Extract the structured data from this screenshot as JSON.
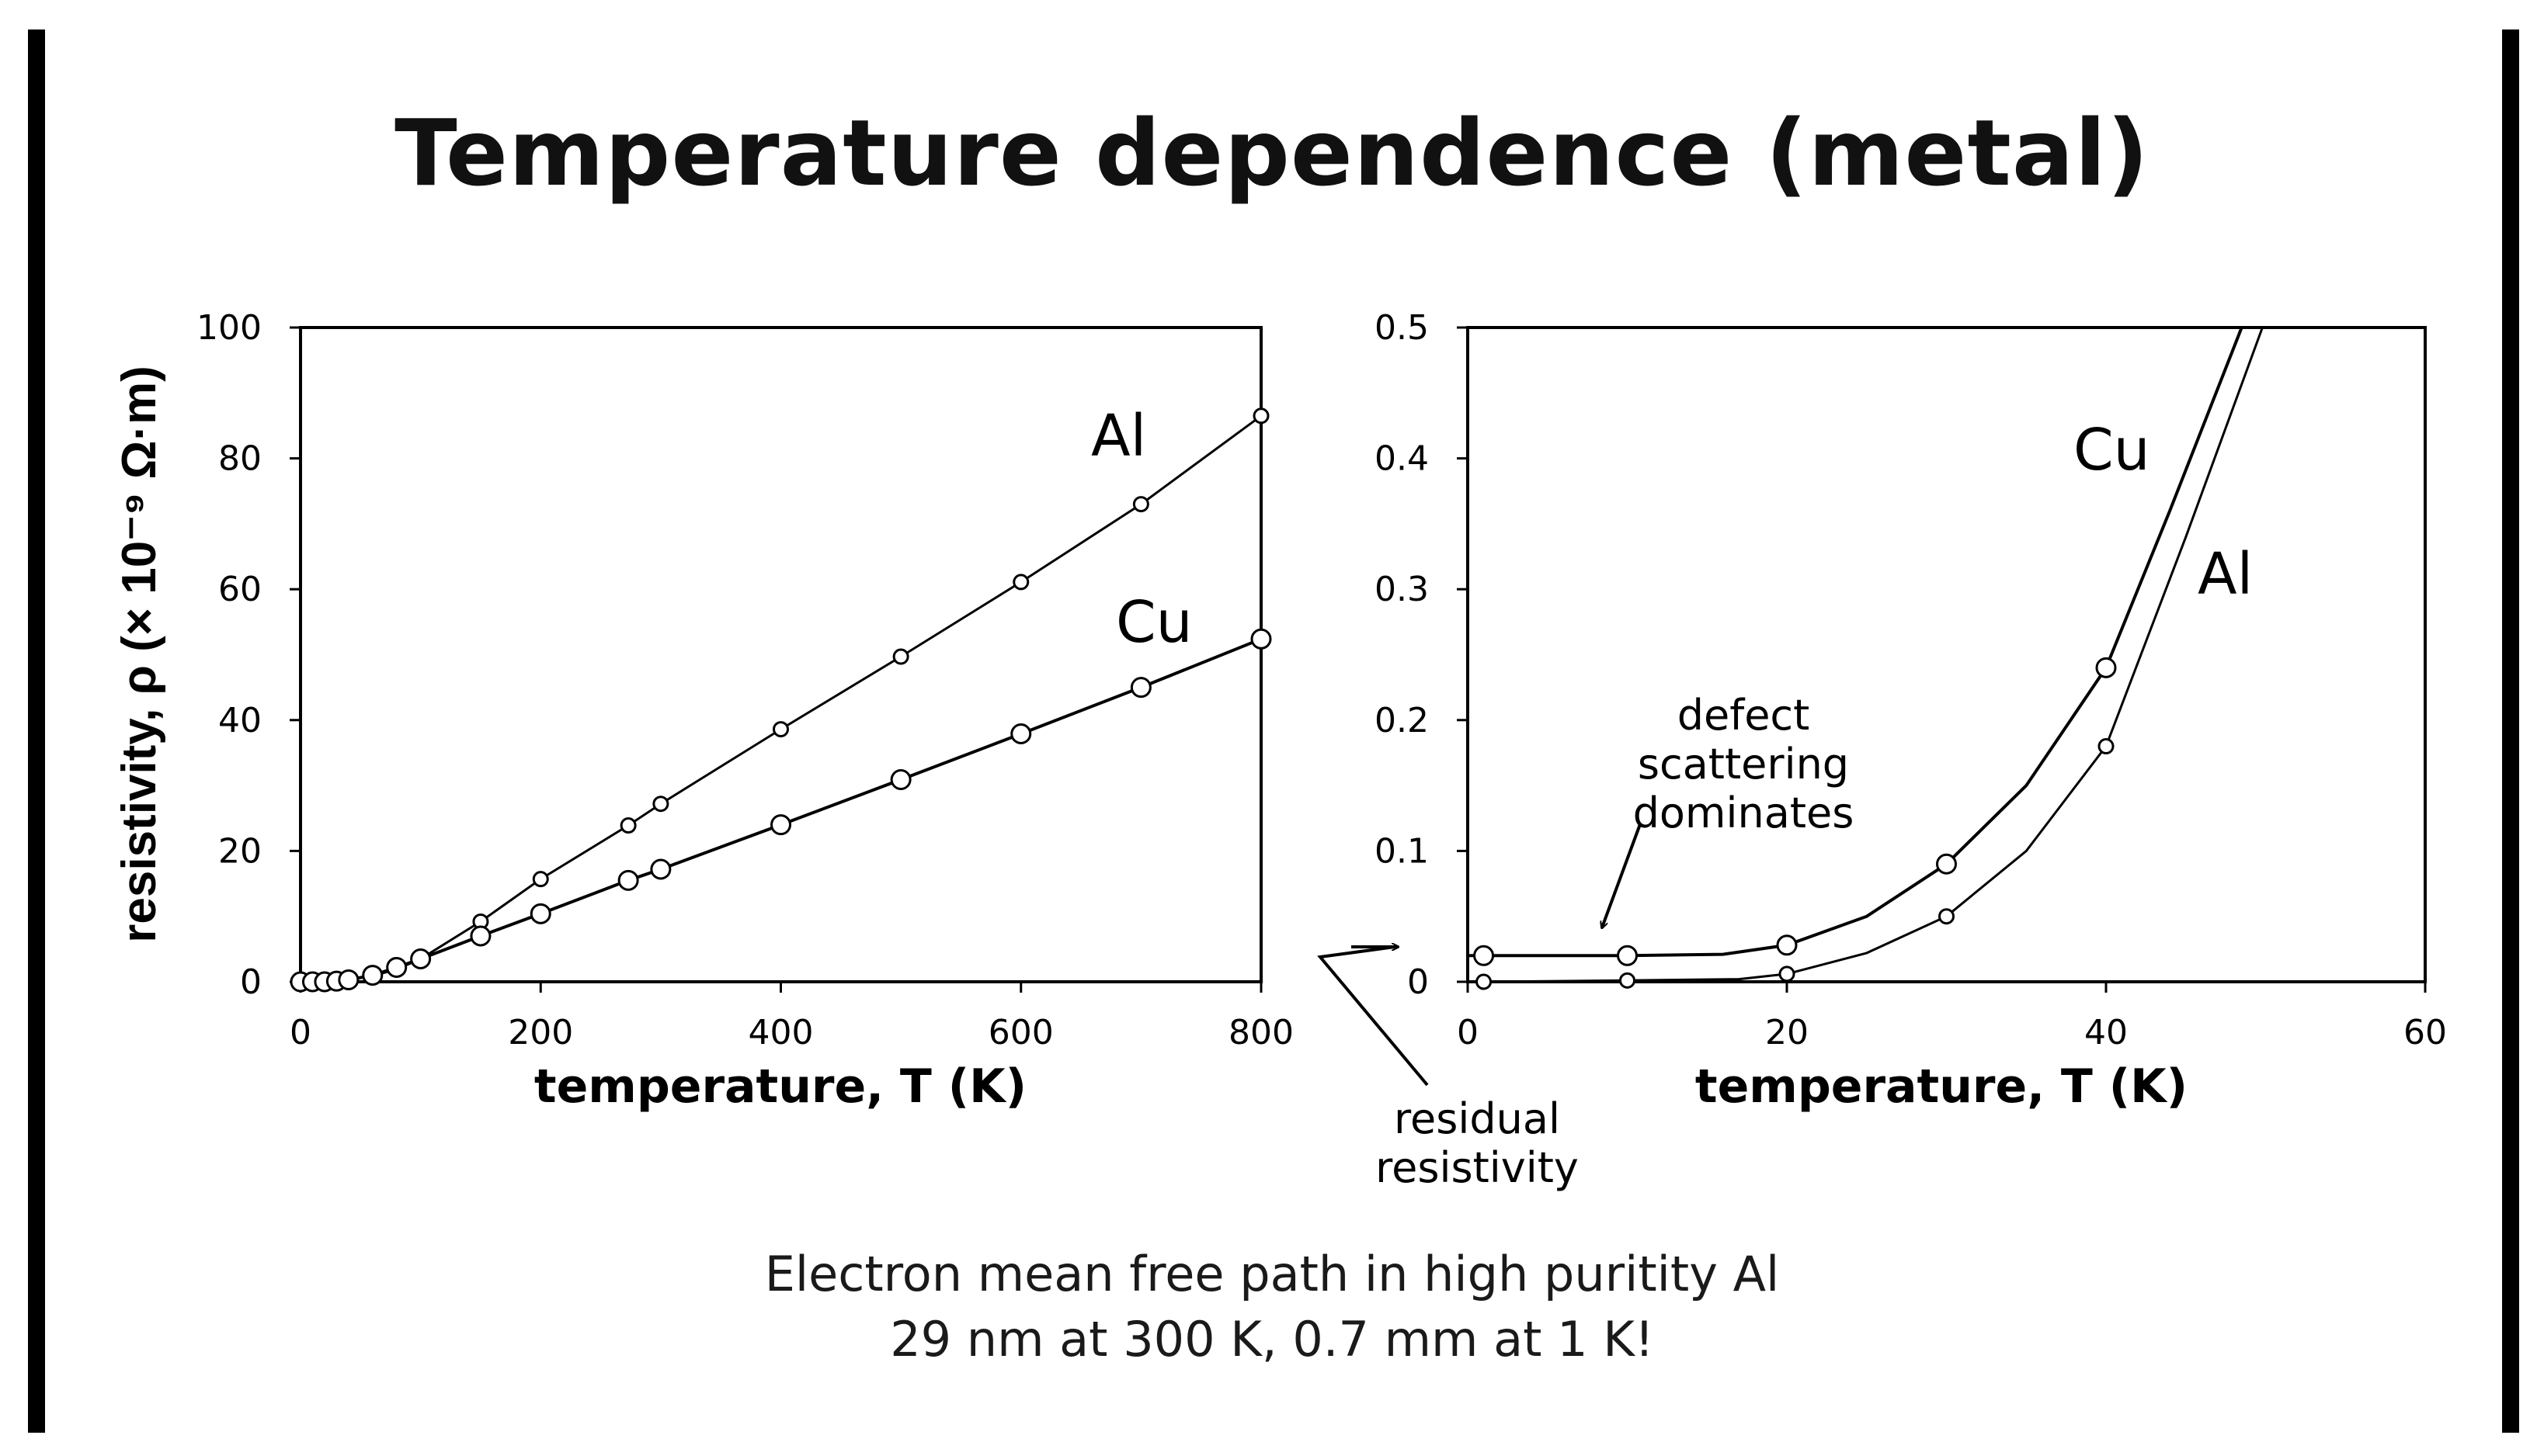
{
  "slide": {
    "title": "Temperature dependence (metal)",
    "caption_line1": "Electron mean free path in high puritity Al",
    "caption_line2": "29 nm at 300 K, 0.7 mm at 1 K!"
  },
  "annotations": {
    "residual_line1": "residual",
    "residual_line2": "resistivity",
    "defect_line1": "defect",
    "defect_line2": "scattering",
    "defect_line3": "dominates"
  },
  "chart_data": [
    {
      "type": "line",
      "xlabel": "temperature, T (K)",
      "ylabel": "resistivity, ρ (× 10⁻⁹ Ω·m)",
      "xlim": [
        0,
        800
      ],
      "ylim": [
        0,
        100
      ],
      "xticks": [
        0,
        200,
        400,
        600,
        800
      ],
      "yticks": [
        0,
        20,
        40,
        60,
        80,
        100
      ],
      "xtick_labels": [
        "0",
        "200",
        "400",
        "600",
        "800"
      ],
      "ytick_labels": [
        "0",
        "20",
        "40",
        "60",
        "80",
        "100"
      ],
      "grid": false,
      "legend": "inline labels",
      "series": [
        {
          "name": "Al",
          "marker": "small-open-circle",
          "x": [
            0,
            10,
            20,
            30,
            40,
            60,
            80,
            100,
            150,
            200,
            273,
            300,
            400,
            500,
            600,
            700,
            800
          ],
          "y": [
            0.0,
            0.0,
            0.0,
            0.1,
            0.3,
            0.9,
            1.9,
            3.5,
            9.2,
            15.7,
            23.9,
            27.2,
            38.6,
            49.7,
            61.1,
            73.0,
            86.5
          ]
        },
        {
          "name": "Cu",
          "marker": "open-circle",
          "x": [
            0,
            10,
            20,
            30,
            40,
            60,
            80,
            100,
            150,
            200,
            273,
            300,
            400,
            500,
            600,
            700,
            800
          ],
          "y": [
            0.0,
            0.0,
            0.0,
            0.1,
            0.3,
            1.0,
            2.2,
            3.5,
            7.0,
            10.4,
            15.5,
            17.2,
            24.0,
            30.9,
            37.9,
            45.0,
            52.4
          ]
        }
      ]
    },
    {
      "type": "line",
      "xlabel": "temperature, T (K)",
      "ylabel": "",
      "xlim": [
        0,
        60
      ],
      "ylim": [
        0,
        0.5
      ],
      "xticks": [
        0,
        20,
        40,
        60
      ],
      "yticks": [
        0,
        0.1,
        0.2,
        0.3,
        0.4,
        0.5
      ],
      "xtick_labels": [
        "0",
        "20",
        "40",
        "60"
      ],
      "ytick_labels": [
        "0",
        "0.1",
        "0.2",
        "0.3",
        "0.4",
        "0.5"
      ],
      "grid": false,
      "legend": "inline labels",
      "series": [
        {
          "name": "Cu",
          "marker": "open-circle",
          "x": [
            0,
            1,
            10,
            16,
            20,
            25,
            30,
            35,
            40,
            44,
            48.5
          ],
          "y": [
            0.02,
            0.02,
            0.02,
            0.021,
            0.028,
            0.05,
            0.09,
            0.15,
            0.24,
            0.36,
            0.5
          ],
          "marker_x": [
            1,
            10,
            20,
            30,
            40
          ],
          "marker_y": [
            0.02,
            0.02,
            0.028,
            0.09,
            0.24
          ]
        },
        {
          "name": "Al",
          "marker": "small-open-circle",
          "x": [
            0,
            1,
            10,
            17,
            20,
            25,
            30,
            35,
            40,
            45,
            49.8
          ],
          "y": [
            0.0,
            0.0,
            0.001,
            0.002,
            0.006,
            0.022,
            0.05,
            0.1,
            0.18,
            0.34,
            0.5
          ],
          "marker_x": [
            1,
            10,
            20,
            30,
            40
          ],
          "marker_y": [
            0.0,
            0.001,
            0.006,
            0.05,
            0.18
          ]
        }
      ]
    }
  ]
}
